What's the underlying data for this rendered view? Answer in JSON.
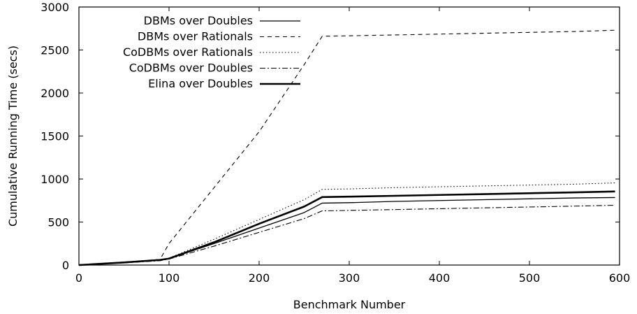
{
  "chart_data": {
    "type": "line",
    "title": "",
    "xlabel": "Benchmark Number",
    "ylabel": "Cumulative Running Time (secs)",
    "xlim": [
      0,
      600
    ],
    "ylim": [
      0,
      3000
    ],
    "xticks": [
      0,
      100,
      200,
      300,
      400,
      500,
      600
    ],
    "yticks": [
      0,
      500,
      1000,
      1500,
      2000,
      2500,
      3000
    ],
    "grid": false,
    "legend_position": "top-left",
    "series": [
      {
        "name": "DBMs over Doubles",
        "style": "solid",
        "color": "#000000",
        "x": [
          0,
          50,
          90,
          100,
          150,
          200,
          250,
          270,
          300,
          350,
          400,
          450,
          500,
          550,
          595
        ],
        "y": [
          0,
          30,
          55,
          75,
          250,
          430,
          610,
          720,
          725,
          740,
          750,
          760,
          770,
          780,
          785
        ]
      },
      {
        "name": "DBMs over Rationals",
        "style": "dashed",
        "color": "#000000",
        "x": [
          0,
          50,
          90,
          100,
          150,
          200,
          250,
          270,
          300,
          350,
          400,
          450,
          500,
          550,
          595
        ],
        "y": [
          0,
          35,
          65,
          250,
          900,
          1550,
          2330,
          2660,
          2665,
          2675,
          2685,
          2695,
          2705,
          2715,
          2730
        ]
      },
      {
        "name": "CoDBMs over Rationals",
        "style": "dotted",
        "color": "#000000",
        "x": [
          0,
          50,
          90,
          100,
          150,
          200,
          250,
          270,
          300,
          350,
          400,
          450,
          500,
          550,
          595
        ],
        "y": [
          0,
          30,
          60,
          80,
          300,
          530,
          760,
          880,
          885,
          900,
          910,
          920,
          930,
          940,
          955
        ]
      },
      {
        "name": "CoDBMs over Doubles",
        "style": "dashdot",
        "color": "#000000",
        "x": [
          0,
          50,
          90,
          100,
          150,
          200,
          250,
          270,
          300,
          350,
          400,
          450,
          500,
          550,
          595
        ],
        "y": [
          0,
          25,
          50,
          70,
          220,
          380,
          540,
          630,
          635,
          645,
          655,
          665,
          675,
          685,
          695
        ]
      },
      {
        "name": "Elina over Doubles",
        "style": "thick",
        "color": "#000000",
        "x": [
          0,
          50,
          90,
          100,
          150,
          200,
          250,
          270,
          300,
          350,
          400,
          450,
          500,
          550,
          595
        ],
        "y": [
          0,
          30,
          60,
          75,
          265,
          480,
          680,
          790,
          795,
          805,
          815,
          825,
          835,
          845,
          855
        ]
      }
    ]
  }
}
